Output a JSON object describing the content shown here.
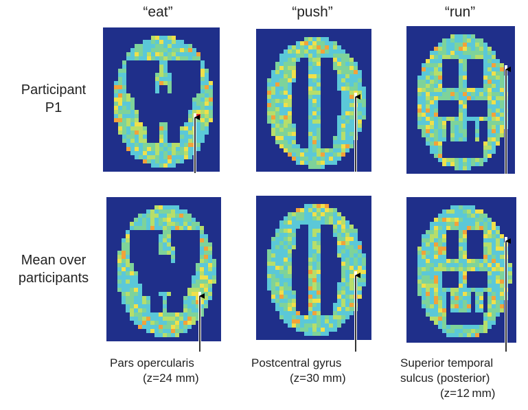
{
  "columns": [
    {
      "label": "“eat”"
    },
    {
      "label": "“push”"
    },
    {
      "label": "“run”"
    }
  ],
  "rows": [
    {
      "label_line1": "Participant",
      "label_line2": "P1"
    },
    {
      "label_line1": "Mean over",
      "label_line2": "participants"
    }
  ],
  "annotations": [
    {
      "region_line1": "Pars opercularis",
      "region_line2": "(z=24 mm)"
    },
    {
      "region_line1": "Postcentral gyrus",
      "region_line2": "(z=30 mm)"
    },
    {
      "region_line1": "Superior temporal",
      "region_line2": "sulcus (posterior)",
      "region_line3": "(z=12 mm)"
    }
  ],
  "colors": {
    "background_blue": "#1f2f8a",
    "tissue_cyan": "#5bc8d8",
    "tissue_green": "#7ed39a",
    "hot_yellow": "#f0e04a",
    "hot_red": "#e0302a"
  }
}
